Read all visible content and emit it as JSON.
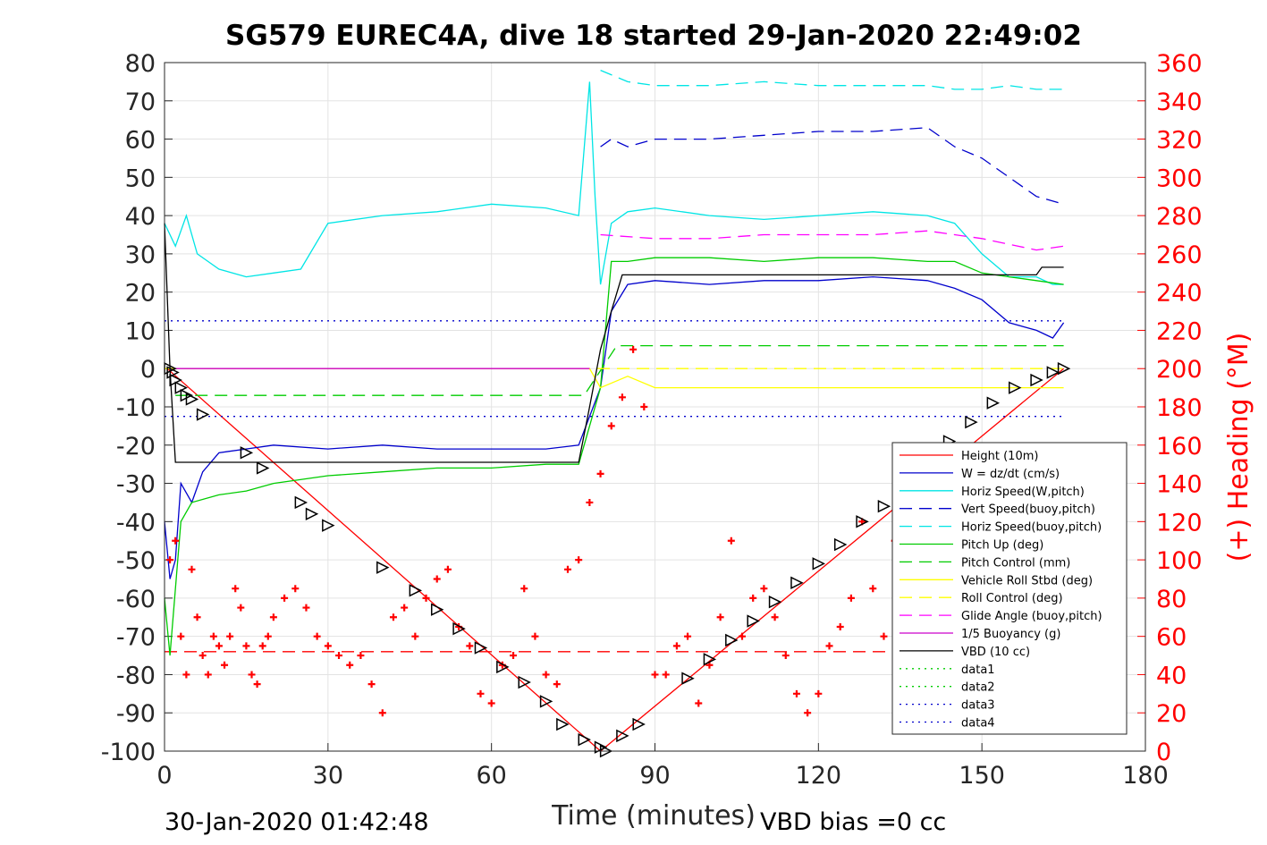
{
  "chart_data": {
    "type": "line",
    "title": "SG579 EUREC4A, dive 18 started 29-Jan-2020 22:49:02",
    "xlabel": "Time (minutes)",
    "ylabel": "",
    "y2label": "(+) Heading (°M)",
    "xlim": [
      0,
      180
    ],
    "ylim": [
      -100,
      80
    ],
    "y2lim": [
      0,
      360
    ],
    "xticks": [
      "0",
      "30",
      "60",
      "90",
      "120",
      "150",
      "180"
    ],
    "yticks": [
      "80",
      "70",
      "60",
      "50",
      "40",
      "30",
      "20",
      "10",
      "0",
      "-10",
      "-20",
      "-30",
      "-40",
      "-50",
      "-60",
      "-70",
      "-80",
      "-90",
      "-100"
    ],
    "y2ticks": [
      "360",
      "340",
      "320",
      "300",
      "280",
      "260",
      "240",
      "220",
      "200",
      "180",
      "160",
      "140",
      "120",
      "100",
      "80",
      "60",
      "40",
      "20",
      "0"
    ],
    "grid": true,
    "legend_position": "bottom-right",
    "footer_left": "30-Jan-2020 01:42:48",
    "footer_right": "VBD bias =0 cc",
    "series": [
      {
        "name": "Height (10m)",
        "color": "#ff0000",
        "style": "solid",
        "x": [
          0.5,
          80,
          165
        ],
        "y": [
          0,
          -100,
          0
        ]
      },
      {
        "name": "W = dz/dt (cm/s)",
        "color": "#0000cc",
        "style": "solid",
        "x": [
          0,
          1,
          2,
          3,
          5,
          7,
          10,
          15,
          20,
          30,
          40,
          50,
          60,
          70,
          76,
          80,
          82,
          85,
          90,
          100,
          110,
          120,
          130,
          140,
          145,
          150,
          155,
          160,
          163,
          165
        ],
        "y": [
          -40,
          -55,
          -50,
          -30,
          -35,
          -27,
          -22,
          -21,
          -20,
          -21,
          -20,
          -21,
          -21,
          -21,
          -20,
          -5,
          15,
          22,
          23,
          22,
          23,
          23,
          24,
          23,
          21,
          18,
          12,
          10,
          8,
          12
        ]
      },
      {
        "name": "Horiz Speed(W,pitch)",
        "color": "#00e5e5",
        "style": "solid",
        "x": [
          0,
          2,
          4,
          6,
          10,
          15,
          20,
          25,
          30,
          40,
          50,
          60,
          70,
          76,
          78,
          79,
          80,
          82,
          85,
          90,
          100,
          110,
          120,
          130,
          140,
          145,
          150,
          155,
          160,
          163,
          165
        ],
        "y": [
          38,
          32,
          40,
          30,
          26,
          24,
          25,
          26,
          38,
          40,
          41,
          43,
          42,
          40,
          75,
          45,
          22,
          38,
          41,
          42,
          40,
          39,
          40,
          41,
          40,
          38,
          30,
          24,
          24,
          22,
          22
        ]
      },
      {
        "name": "Vert Speed(buoy,pitch)",
        "color": "#0000cc",
        "style": "dashed",
        "x": [
          80,
          82,
          85,
          90,
          100,
          110,
          120,
          130,
          140,
          145,
          150,
          155,
          160,
          165
        ],
        "y": [
          58,
          60,
          58,
          60,
          60,
          61,
          62,
          62,
          63,
          58,
          55,
          50,
          45,
          43
        ]
      },
      {
        "name": "Horiz Speed(buoy,pitch)",
        "color": "#00e5e5",
        "style": "dashed",
        "x": [
          80,
          85,
          90,
          100,
          110,
          120,
          130,
          140,
          145,
          150,
          155,
          160,
          165
        ],
        "y": [
          78,
          75,
          74,
          74,
          75,
          74,
          74,
          74,
          73,
          73,
          74,
          73,
          73
        ]
      },
      {
        "name": "Pitch Up (deg)",
        "color": "#00cc00",
        "style": "solid",
        "x": [
          0,
          1,
          3,
          5,
          10,
          15,
          20,
          30,
          40,
          50,
          60,
          70,
          76,
          80,
          82,
          85,
          90,
          100,
          110,
          120,
          130,
          140,
          145,
          150,
          155,
          160,
          165
        ],
        "y": [
          -60,
          -75,
          -40,
          -35,
          -33,
          -32,
          -30,
          -28,
          -27,
          -26,
          -26,
          -25,
          -25,
          -5,
          28,
          28,
          29,
          29,
          28,
          29,
          29,
          28,
          28,
          25,
          24,
          23,
          22
        ]
      },
      {
        "name": "Pitch Control (mm)",
        "color": "#00cc00",
        "style": "dashed",
        "x": [
          2,
          77,
          83,
          165
        ],
        "y": [
          -7,
          -7,
          6,
          6
        ]
      },
      {
        "name": "Vehicle Roll Stbd (deg)",
        "color": "#ffff00",
        "style": "solid",
        "x": [
          0,
          10,
          20,
          30,
          40,
          50,
          60,
          70,
          78,
          80,
          85,
          90,
          100,
          110,
          120,
          130,
          140,
          150,
          160,
          165
        ],
        "y": [
          0,
          0,
          0,
          0,
          0,
          0,
          0,
          0,
          0,
          -5,
          -2,
          -5,
          -5,
          -5,
          -5,
          -5,
          -5,
          -5,
          -5,
          -5
        ]
      },
      {
        "name": "Roll Control (deg)",
        "color": "#ffff00",
        "style": "dashed",
        "x": [
          0,
          165
        ],
        "y": [
          0,
          0
        ]
      },
      {
        "name": "Glide Angle (buoy,pitch)",
        "color": "#ff00ff",
        "style": "dashed",
        "x": [
          80,
          90,
          100,
          110,
          120,
          130,
          140,
          150,
          160,
          165
        ],
        "y": [
          35,
          34,
          34,
          35,
          35,
          35,
          36,
          34,
          31,
          32
        ]
      },
      {
        "name": "1/5 Buoyancy (g)",
        "color": "#cc00cc",
        "style": "solid",
        "x": [
          2,
          78
        ],
        "y": [
          0,
          0
        ]
      },
      {
        "name": "VBD (10 cc)",
        "color": "#000000",
        "style": "solid",
        "x": [
          0,
          1,
          2,
          76,
          78,
          80,
          82,
          84,
          160,
          161,
          165
        ],
        "y": [
          38,
          0,
          -24.5,
          -24.5,
          -10,
          5,
          15,
          24.5,
          24.5,
          26.5,
          26.5
        ]
      },
      {
        "name": "data1",
        "color": "#00cc00",
        "style": "dotted",
        "x": [],
        "y": []
      },
      {
        "name": "data2",
        "color": "#00cc00",
        "style": "dotted",
        "x": [],
        "y": []
      },
      {
        "name": "data3",
        "color": "#0000cc",
        "style": "dotted",
        "x": [
          0,
          165
        ],
        "y": [
          12.5,
          12.5
        ]
      },
      {
        "name": "data4",
        "color": "#0000cc",
        "style": "dotted",
        "x": [
          0,
          165
        ],
        "y": [
          -12.5,
          -12.5
        ]
      }
    ],
    "extra_lines": [
      {
        "color": "#ff0000",
        "style": "dashed",
        "x": [
          0,
          165
        ],
        "y": [
          -74,
          -74
        ]
      }
    ],
    "heading": {
      "axis": "right",
      "marker": "+",
      "color": "#ff0000",
      "x": [
        1,
        2,
        3,
        4,
        5,
        6,
        7,
        8,
        9,
        10,
        11,
        12,
        13,
        14,
        15,
        16,
        17,
        18,
        19,
        20,
        22,
        24,
        26,
        28,
        30,
        32,
        34,
        36,
        38,
        40,
        42,
        44,
        46,
        48,
        50,
        52,
        54,
        56,
        58,
        60,
        62,
        64,
        66,
        68,
        70,
        72,
        74,
        76,
        78,
        80,
        82,
        84,
        86,
        88,
        90,
        92,
        94,
        96,
        98,
        100,
        102,
        104,
        106,
        108,
        110,
        112,
        114,
        116,
        118,
        120,
        122,
        124,
        126,
        128,
        130,
        132,
        134,
        136,
        138,
        140,
        142,
        144,
        146,
        148,
        150,
        152,
        154,
        156,
        158,
        160,
        162,
        164
      ],
      "y": [
        100,
        110,
        60,
        40,
        95,
        70,
        50,
        40,
        60,
        55,
        45,
        60,
        85,
        75,
        55,
        40,
        35,
        55,
        60,
        70,
        80,
        85,
        75,
        60,
        55,
        50,
        45,
        50,
        35,
        20,
        70,
        75,
        60,
        80,
        90,
        95,
        65,
        55,
        30,
        25,
        45,
        50,
        85,
        60,
        40,
        35,
        95,
        100,
        130,
        145,
        170,
        185,
        210,
        180,
        40,
        40,
        55,
        60,
        25,
        45,
        70,
        110,
        60,
        80,
        85,
        70,
        50,
        30,
        20,
        30,
        55,
        65,
        80,
        120,
        85,
        60,
        110,
        70,
        30,
        20,
        50,
        40,
        60,
        80,
        80,
        40,
        30,
        60,
        80,
        70,
        40,
        60
      ]
    },
    "markers": {
      "marker": "triangle",
      "color": "#000000",
      "x": [
        1,
        1.5,
        2,
        3,
        4,
        5,
        7,
        15,
        18,
        25,
        27,
        30,
        40,
        46,
        50,
        54,
        58,
        62,
        66,
        70,
        73,
        77,
        80,
        81,
        84,
        87,
        96,
        100,
        104,
        108,
        112,
        116,
        120,
        124,
        128,
        132,
        136,
        140,
        144,
        148,
        152,
        156,
        160,
        163,
        165
      ],
      "y": [
        0,
        -1,
        -3,
        -5,
        -7,
        -8,
        -12,
        -22,
        -26,
        -35,
        -38,
        -41,
        -52,
        -58,
        -63,
        -68,
        -73,
        -78,
        -82,
        -87,
        -93,
        -97,
        -99,
        -100,
        -96,
        -93,
        -81,
        -76,
        -71,
        -66,
        -61,
        -56,
        -51,
        -46,
        -40,
        -36,
        -30,
        -24,
        -19,
        -14,
        -9,
        -5,
        -3,
        -1,
        0
      ]
    }
  }
}
